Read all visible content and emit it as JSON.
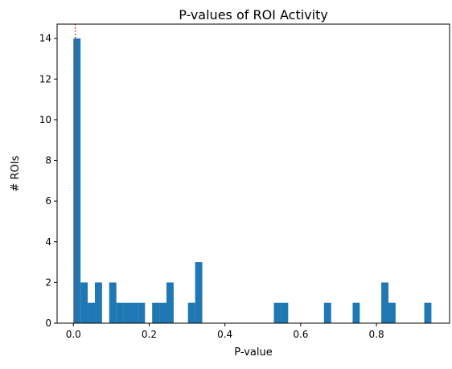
{
  "chart_data": {
    "type": "bar",
    "title": "P-values of ROI Activity",
    "xlabel": "P-value",
    "ylabel": "# ROIs",
    "xlim": [
      -0.043,
      0.993
    ],
    "ylim": [
      0,
      14.7
    ],
    "xticks": [
      0.0,
      0.2,
      0.4,
      0.6,
      0.8
    ],
    "xtick_labels": [
      "0.0",
      "0.2",
      "0.4",
      "0.6",
      "0.8"
    ],
    "yticks": [
      0,
      2,
      4,
      6,
      8,
      10,
      12,
      14
    ],
    "ytick_labels": [
      "0",
      "2",
      "4",
      "6",
      "8",
      "10",
      "12",
      "14"
    ],
    "bin_width": 0.0189,
    "bins": [
      {
        "x0": 0.0,
        "x1": 0.0189,
        "count": 14
      },
      {
        "x0": 0.0189,
        "x1": 0.0378,
        "count": 2
      },
      {
        "x0": 0.0378,
        "x1": 0.0567,
        "count": 1
      },
      {
        "x0": 0.0567,
        "x1": 0.0756,
        "count": 2
      },
      {
        "x0": 0.0945,
        "x1": 0.1134,
        "count": 2
      },
      {
        "x0": 0.1134,
        "x1": 0.1323,
        "count": 1
      },
      {
        "x0": 0.1323,
        "x1": 0.1512,
        "count": 1
      },
      {
        "x0": 0.1512,
        "x1": 0.1701,
        "count": 1
      },
      {
        "x0": 0.1701,
        "x1": 0.189,
        "count": 1
      },
      {
        "x0": 0.2079,
        "x1": 0.2268,
        "count": 1
      },
      {
        "x0": 0.2268,
        "x1": 0.2457,
        "count": 1
      },
      {
        "x0": 0.2457,
        "x1": 0.2646,
        "count": 2
      },
      {
        "x0": 0.3024,
        "x1": 0.3213,
        "count": 1
      },
      {
        "x0": 0.3213,
        "x1": 0.3402,
        "count": 3
      },
      {
        "x0": 0.5292,
        "x1": 0.5481,
        "count": 1
      },
      {
        "x0": 0.5481,
        "x1": 0.567,
        "count": 1
      },
      {
        "x0": 0.6615,
        "x1": 0.6804,
        "count": 1
      },
      {
        "x0": 0.7371,
        "x1": 0.756,
        "count": 1
      },
      {
        "x0": 0.8127,
        "x1": 0.8316,
        "count": 2
      },
      {
        "x0": 0.8316,
        "x1": 0.8505,
        "count": 1
      },
      {
        "x0": 0.9261,
        "x1": 0.945,
        "count": 1
      }
    ],
    "bar_color": "#1f77b4",
    "threshold_line": {
      "x": 0.005,
      "color": "#d62728",
      "style": "dotted"
    },
    "grid": false,
    "legend": "none"
  }
}
